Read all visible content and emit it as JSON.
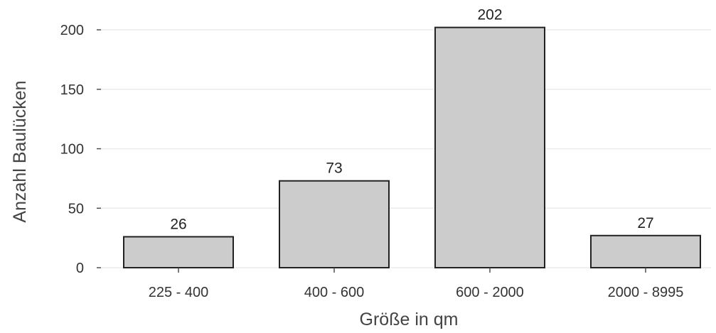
{
  "chart_data": {
    "type": "bar",
    "categories": [
      "225 - 400",
      "400 - 600",
      "600 - 2000",
      "2000 - 8995"
    ],
    "values": [
      26,
      73,
      202,
      27
    ],
    "data_labels": [
      "26",
      "73",
      "202",
      "27"
    ],
    "xlabel": "Größe in qm",
    "ylabel": "Anzahl Baulücken",
    "ylim": [
      0,
      210
    ],
    "yticks": [
      0,
      50,
      100,
      150,
      200
    ],
    "ytick_labels": [
      "0",
      "50",
      "100",
      "150",
      "200"
    ],
    "grid": "horizontal",
    "bar_color": "#cccccc",
    "bar_edge_color": "#222222"
  }
}
